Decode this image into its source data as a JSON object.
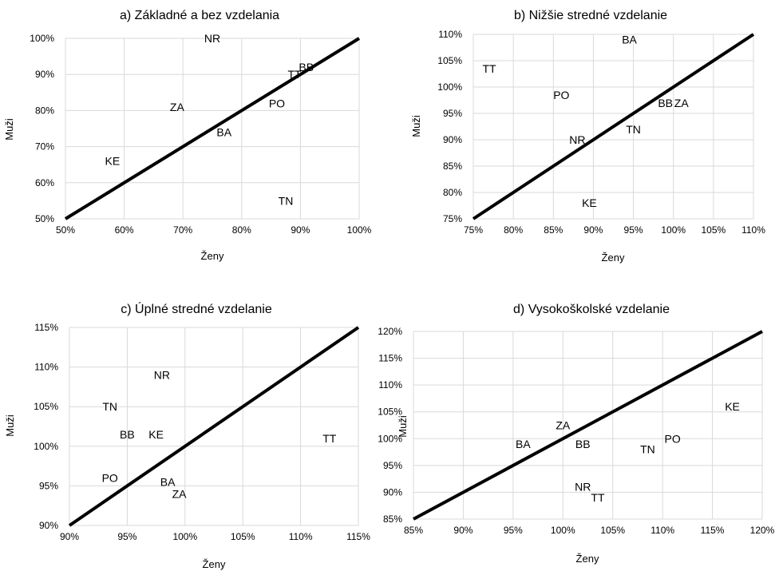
{
  "chart_data": [
    {
      "type": "scatter",
      "title": "a) Základné a bez vzdelania",
      "xlabel": "Ženy",
      "ylabel": "Muži",
      "xlim": [
        50,
        100
      ],
      "ylim": [
        50,
        100
      ],
      "xticks": [
        "50%",
        "60%",
        "70%",
        "80%",
        "90%",
        "100%"
      ],
      "yticks": [
        "50%",
        "60%",
        "70%",
        "80%",
        "90%",
        "100%"
      ],
      "reference_line": "y = x",
      "grid": true,
      "points": [
        {
          "label": "NR",
          "x": 75,
          "y": 100
        },
        {
          "label": "BB",
          "x": 91,
          "y": 92
        },
        {
          "label": "TT",
          "x": 89,
          "y": 90
        },
        {
          "label": "PO",
          "x": 86,
          "y": 82
        },
        {
          "label": "ZA",
          "x": 69,
          "y": 81
        },
        {
          "label": "BA",
          "x": 77,
          "y": 74
        },
        {
          "label": "KE",
          "x": 58,
          "y": 66
        },
        {
          "label": "TN",
          "x": 87.5,
          "y": 55
        }
      ]
    },
    {
      "type": "scatter",
      "title": "b) Nižšie stredné vzdelanie",
      "xlabel": "Ženy",
      "ylabel": "Muži",
      "xlim": [
        75,
        110
      ],
      "ylim": [
        75,
        110
      ],
      "xticks": [
        "75%",
        "80%",
        "85%",
        "90%",
        "95%",
        "100%",
        "105%",
        "110%"
      ],
      "yticks": [
        "75%",
        "80%",
        "85%",
        "90%",
        "95%",
        "100%",
        "105%",
        "110%"
      ],
      "reference_line": "y = x",
      "grid": true,
      "points": [
        {
          "label": "BA",
          "x": 94.5,
          "y": 109
        },
        {
          "label": "TT",
          "x": 77,
          "y": 103.5
        },
        {
          "label": "PO",
          "x": 86,
          "y": 98.5
        },
        {
          "label": "BB",
          "x": 99,
          "y": 97
        },
        {
          "label": "ZA",
          "x": 101,
          "y": 97
        },
        {
          "label": "TN",
          "x": 95,
          "y": 92
        },
        {
          "label": "NR",
          "x": 88,
          "y": 90
        },
        {
          "label": "KE",
          "x": 89.5,
          "y": 78
        }
      ]
    },
    {
      "type": "scatter",
      "title": "c) Úplné stredné vzdelanie",
      "xlabel": "Ženy",
      "ylabel": "Muži",
      "xlim": [
        90,
        115
      ],
      "ylim": [
        90,
        115
      ],
      "xticks": [
        "90%",
        "95%",
        "100%",
        "105%",
        "110%",
        "115%"
      ],
      "yticks": [
        "90%",
        "95%",
        "100%",
        "105%",
        "110%",
        "115%"
      ],
      "reference_line": "y = x",
      "grid": true,
      "points": [
        {
          "label": "NR",
          "x": 98,
          "y": 109
        },
        {
          "label": "TN",
          "x": 93.5,
          "y": 105
        },
        {
          "label": "BB",
          "x": 95,
          "y": 101.5
        },
        {
          "label": "KE",
          "x": 97.5,
          "y": 101.5
        },
        {
          "label": "TT",
          "x": 112.5,
          "y": 101
        },
        {
          "label": "PO",
          "x": 93.5,
          "y": 96
        },
        {
          "label": "BA",
          "x": 98.5,
          "y": 95.5
        },
        {
          "label": "ZA",
          "x": 99.5,
          "y": 94
        }
      ]
    },
    {
      "type": "scatter",
      "title": "d) Vysokoškolské vzdelanie",
      "xlabel": "Ženy",
      "ylabel": "Muži",
      "xlim": [
        85,
        120
      ],
      "ylim": [
        85,
        120
      ],
      "xticks": [
        "85%",
        "90%",
        "95%",
        "100%",
        "105%",
        "110%",
        "115%",
        "120%"
      ],
      "yticks": [
        "85%",
        "90%",
        "95%",
        "100%",
        "105%",
        "110%",
        "115%",
        "120%"
      ],
      "reference_line": "y = x",
      "grid": true,
      "points": [
        {
          "label": "KE",
          "x": 117,
          "y": 106
        },
        {
          "label": "ZA",
          "x": 100,
          "y": 102.5
        },
        {
          "label": "BA",
          "x": 96,
          "y": 99
        },
        {
          "label": "BB",
          "x": 102,
          "y": 99
        },
        {
          "label": "PO",
          "x": 111,
          "y": 100
        },
        {
          "label": "TN",
          "x": 108.5,
          "y": 98
        },
        {
          "label": "NR",
          "x": 102,
          "y": 91
        },
        {
          "label": "TT",
          "x": 103.5,
          "y": 89
        }
      ]
    }
  ]
}
